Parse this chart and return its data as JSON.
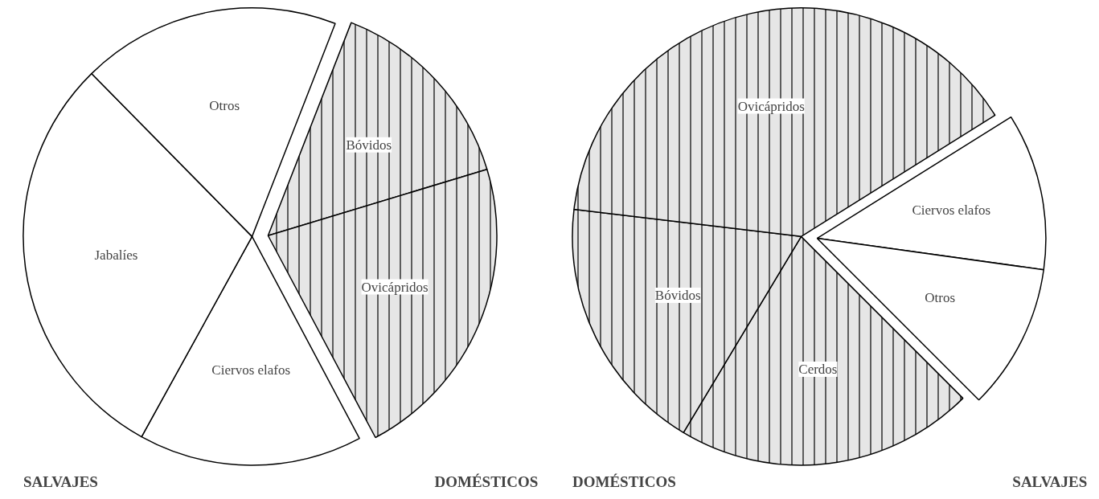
{
  "chart_data": [
    {
      "type": "pie",
      "categories": [
        "Ciervos elafos",
        "Jabalíes",
        "Otros",
        "Bóvidos",
        "Ovicápridos"
      ],
      "values": [
        15.8,
        29.6,
        18.3,
        14.4,
        21.9
      ],
      "colors": [
        "#ffffff",
        "#ffffff",
        "#ffffff",
        "#e6e6e6",
        "#e6e6e6"
      ],
      "annotations": [
        "SALVAJES",
        "DOMÉSTICOS"
      ]
    },
    {
      "type": "pie",
      "categories": [
        "Cerdos",
        "Bóvidos",
        "Ovicápridos",
        "Ciervos elafos",
        "Otros"
      ],
      "values": [
        21.1,
        18.3,
        39.2,
        11.1,
        10.3
      ],
      "colors": [
        "#e6e6e6",
        "#e6e6e6",
        "#e6e6e6",
        "#ffffff",
        "#ffffff"
      ],
      "annotations": [
        "DOMÉSTICOS",
        "SALVAJES"
      ]
    }
  ]
}
